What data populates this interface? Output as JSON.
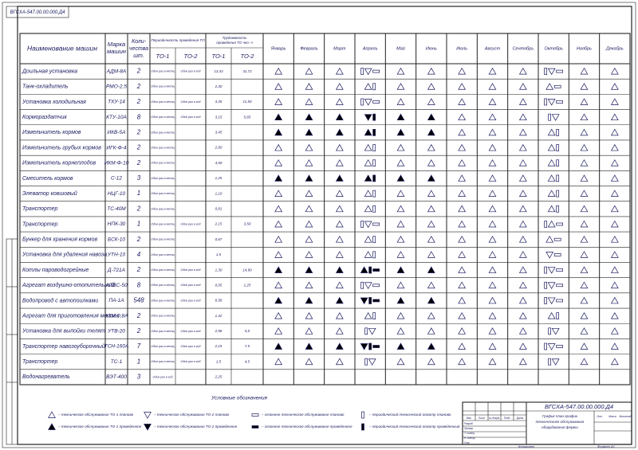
{
  "stamp": "ВГСХА-547.00.00.000.Д4",
  "table": {
    "header": {
      "name": "Наименование машин",
      "mark": [
        "Марка",
        "машин"
      ],
      "qty": [
        "Коли-",
        "чества",
        "шт."
      ],
      "period": "Периодичность проведения ТО",
      "labor": [
        "Трудоемкость",
        "проведения ТО чел.-ч"
      ],
      "to1": "ТО-1",
      "to2": "ТО-2"
    },
    "months": [
      "Январь",
      "Февраль",
      "Март",
      "Апрель",
      "Май",
      "Июнь",
      "Июль",
      "Август",
      "Сентябрь",
      "Октябрь",
      "Ноябрь",
      "Декабрь"
    ],
    "rows": [
      [
        "Доильная установка",
        "АДМ-8А",
        "2",
        "Один раз в месяц",
        "Один раз в год",
        "13,43",
        "31,72"
      ],
      [
        "Танк-охладитель",
        "РМО-2,5",
        "2",
        "Один раз в месяц",
        null,
        "2,30",
        null
      ],
      [
        "Установка холодильная",
        "ТХУ-14",
        "2",
        "Один раз в месяц",
        "Один раз в год",
        "3,45",
        "11,50"
      ],
      [
        "Кормораздатчик",
        "КТУ-10А",
        "8",
        "Один раз в месяц",
        "Один раз в год",
        "3,15",
        "5,65"
      ],
      [
        "Измельчитель кормов",
        "ИКВ-5А",
        "2",
        "Один раз в месяц",
        null,
        "3,45",
        null
      ],
      [
        "Измельчитель грубых кормов",
        "ИГК-Ф-4",
        "2",
        "Один раз в месяц",
        null,
        "2,60",
        null
      ],
      [
        "Измельчитель корнеплодов",
        "ИКМ-Ф-10",
        "2",
        "Один раз в месяц",
        null,
        "4,50",
        null
      ],
      [
        "Смеситель кормов",
        "С-12",
        "3",
        "Один раз в месяц",
        null,
        "1,25",
        null
      ],
      [
        "Элеватор ковшовый",
        "НЦГ-10",
        "1",
        "Один раз в месяц",
        null,
        "1,10",
        null
      ],
      [
        "Транспортер",
        "ТС-40М",
        "2",
        "Один раз в месяц",
        null,
        "0,81",
        null
      ],
      [
        "Транспортер",
        "НПК-30",
        "1",
        "Один раз в месяц",
        "Один раз в год",
        "2,15",
        "3,50"
      ],
      [
        "Бункер для хранения кормов",
        "БСК-10",
        "2",
        "Один раз в месяц",
        null,
        "0,67",
        null
      ],
      [
        "Установка для удаления навоза",
        "УТН-10",
        "4",
        "Один раз в месяц",
        null,
        "1,5",
        null
      ],
      [
        "Котлы пароводогрейные",
        "Д-721А",
        "2",
        "Один раз в месяц",
        "Один раз в год",
        "1,30",
        "14,90"
      ],
      [
        "Агрегат воздушно-отопительный",
        "АПВС-50",
        "8",
        "Один раз в месяц",
        "Один раз в год",
        "0,05",
        "1,25"
      ],
      [
        "Водопровод с автопоилками",
        "ПА-1А",
        "548",
        "Один раз в месяц",
        "Один раз в год",
        "6,58",
        null
      ],
      [
        "Агрегат для приготовления молока",
        "АЗМ-0,8А",
        "2",
        "Один раз в месяц",
        null,
        "1,42",
        null
      ],
      [
        "Установка для выпойки телят",
        "УТВ-20",
        "2",
        "Один раз в месяц",
        "Один раз в год",
        "2,96",
        "5,0"
      ],
      [
        "Транспортер навозоуборочный",
        "ТСН-160А",
        "7",
        "Один раз в месяц",
        "Один раз в год",
        "2,15",
        "7,5"
      ],
      [
        "Транспортер",
        "ТС-1",
        "1",
        "Один раз в месяц",
        "Один раз в год",
        "1,5",
        "4,5"
      ],
      [
        "Водонагреватель",
        "ВЭТ-400",
        "3",
        "Один раз в год",
        null,
        "2,25",
        null
      ]
    ]
  },
  "legend": {
    "title": "Условные обозначения",
    "items": [
      "– техническое обслуживание ТО-1 планово",
      "– техническое обслуживание ТО-1 проведенное",
      "– техническое обслуживание ТО-2 планово",
      "– техническое обслуживание ТО-2 проведенное",
      "– сезонное техническое обслуживание планово",
      "– сезонное техническое обслуживание проведенное",
      "– периодический технический осмотр планово",
      "– периодический технический осмотр проведенный"
    ]
  },
  "title_block": {
    "code": "ВГСХА-547.00.00.000.Д4",
    "desc": [
      "График план-график",
      "технического обслуживания",
      "оборудования фермы"
    ],
    "cols": [
      "Изм.",
      "Лист",
      "№ докум.",
      "Подп.",
      "Дата"
    ],
    "roles": [
      "Разраб.",
      "Провер.",
      "Т. контр.",
      "Н. контр.",
      "Утв."
    ],
    "lit": "Лит.",
    "mass": "Масса",
    "scale": "Масштаб",
    "copied": "Копировал",
    "format": "Формат А1"
  }
}
